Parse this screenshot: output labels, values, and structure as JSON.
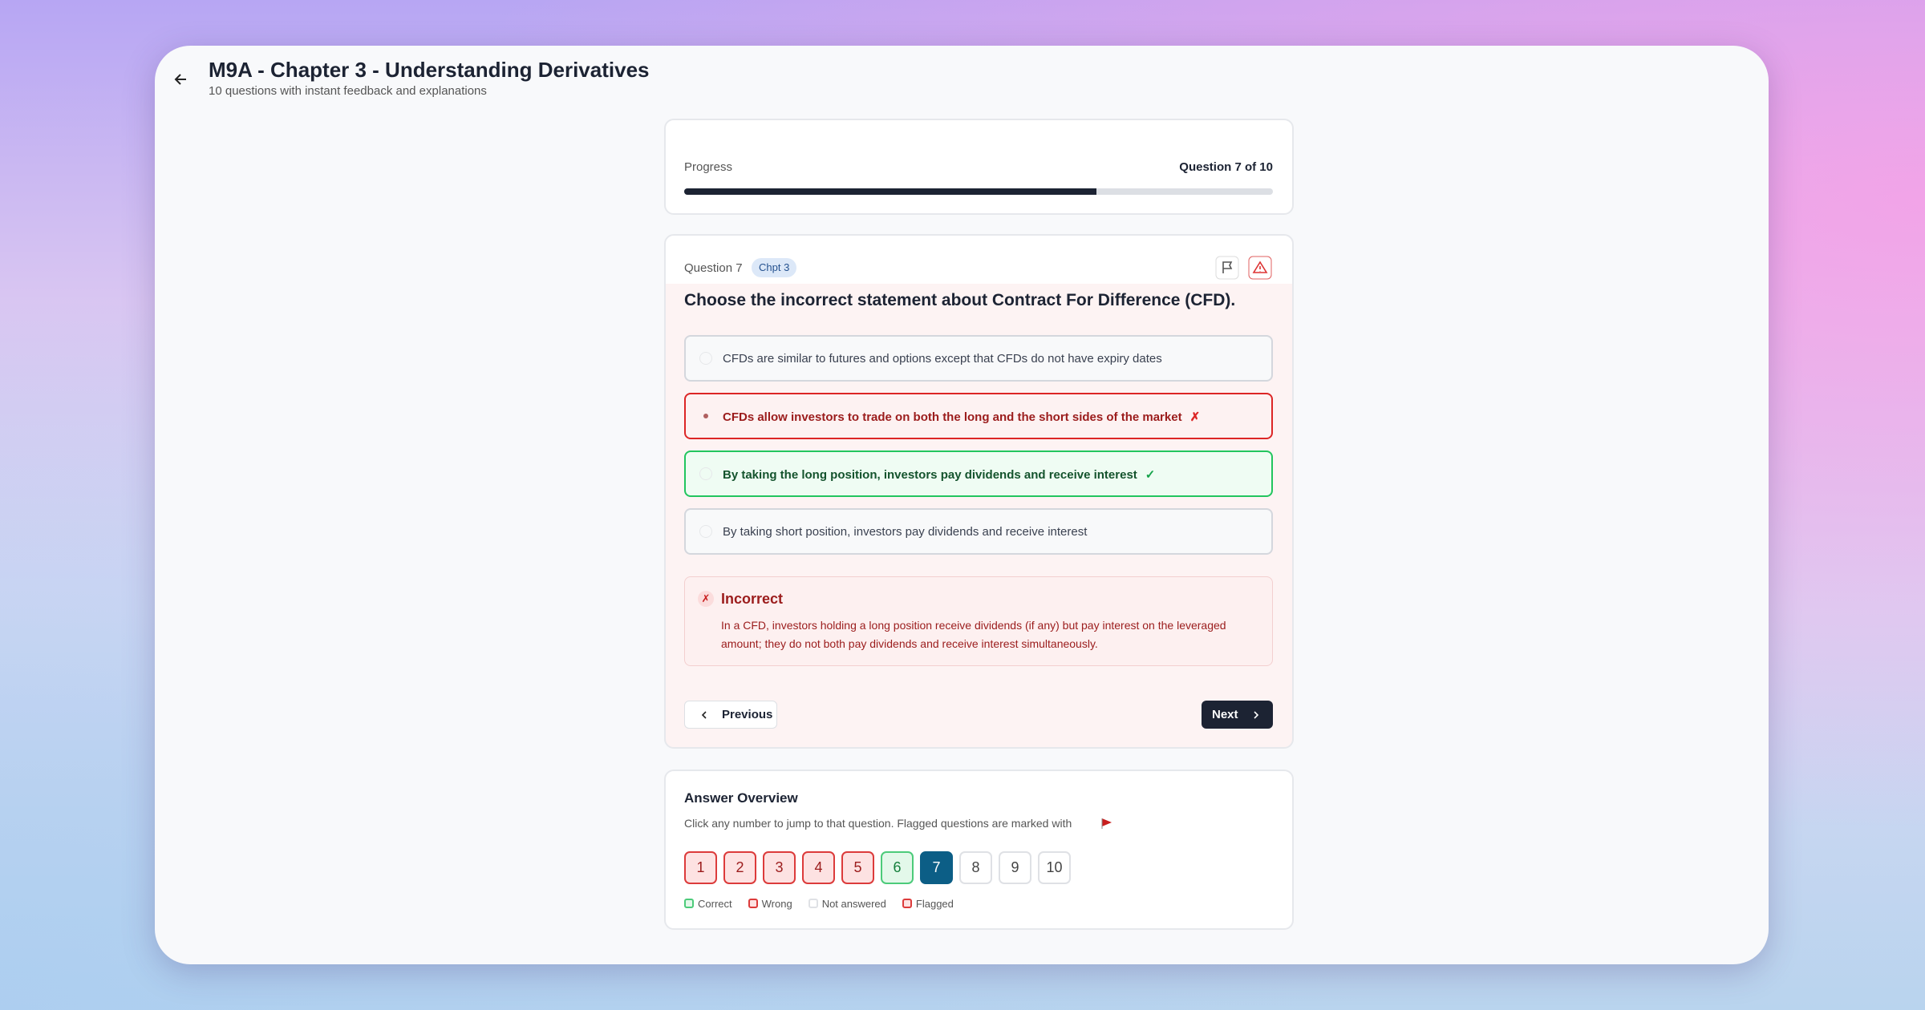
{
  "header": {
    "title": "M9A - Chapter 3 - Understanding Derivatives",
    "subtitle": "10 questions with instant feedback and explanations"
  },
  "progress": {
    "label": "Progress",
    "status": "Question 7 of 10",
    "percent": 70
  },
  "question": {
    "label": "Question 7",
    "badge": "Chpt 3",
    "text": "Choose the incorrect statement about Contract For Difference (CFD).",
    "options": [
      {
        "text": "CFDs are similar to futures and options except that CFDs do not have expiry dates",
        "state": "none"
      },
      {
        "text": "CFDs allow investors to trade on both the long and the short sides of the market",
        "state": "wrong",
        "mark": "✗"
      },
      {
        "text": "By taking the long position, investors pay dividends and receive interest",
        "state": "correct",
        "mark": "✓"
      },
      {
        "text": "By taking short position, investors pay dividends and receive interest",
        "state": "none"
      }
    ]
  },
  "feedback": {
    "icon": "✗",
    "title": "Incorrect",
    "text": "In a CFD, investors holding a long position receive dividends (if any) but pay interest on the leveraged amount; they do not both pay dividends and receive interest simultaneously."
  },
  "buttons": {
    "previous": "Previous",
    "next": "Next"
  },
  "overview": {
    "title": "Answer Overview",
    "description": "Click any number to jump to that question. Flagged questions are marked with",
    "numbers": [
      {
        "label": "1",
        "state": "wrong"
      },
      {
        "label": "2",
        "state": "wrong"
      },
      {
        "label": "3",
        "state": "wrong"
      },
      {
        "label": "4",
        "state": "wrong"
      },
      {
        "label": "5",
        "state": "wrong"
      },
      {
        "label": "6",
        "state": "correct"
      },
      {
        "label": "7",
        "state": "current"
      },
      {
        "label": "8",
        "state": "none"
      },
      {
        "label": "9",
        "state": "none"
      },
      {
        "label": "10",
        "state": "none"
      }
    ],
    "legend": [
      {
        "label": "Correct",
        "state": "correct"
      },
      {
        "label": "Wrong",
        "state": "wrong"
      },
      {
        "label": "Not answered",
        "state": "none"
      },
      {
        "label": "Flagged",
        "state": "flagged"
      }
    ]
  }
}
